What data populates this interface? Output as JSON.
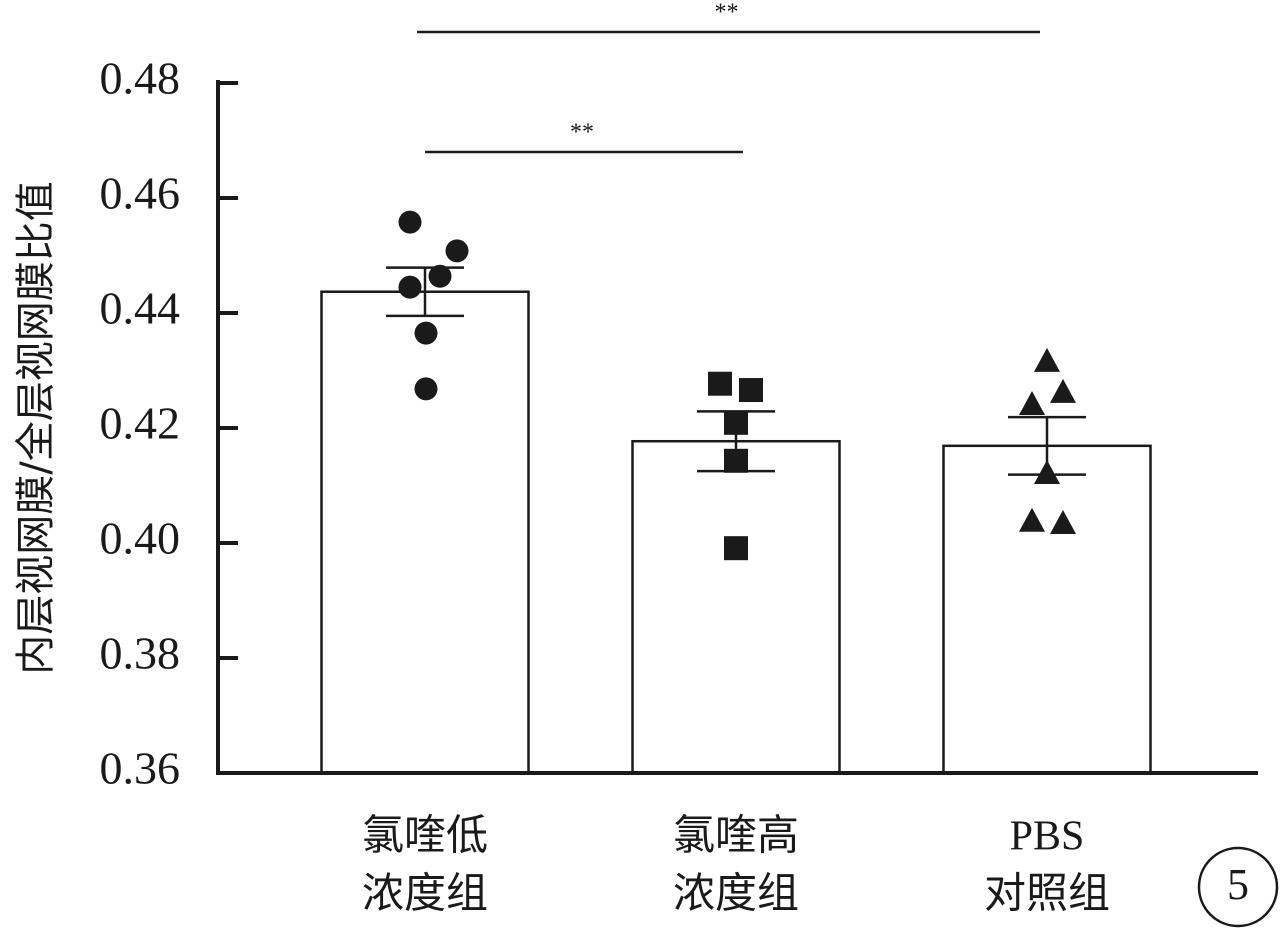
{
  "chart_data": {
    "type": "bar",
    "y_label": "内层视网膜/全层视网膜比值",
    "categories": [
      [
        "氯喹低",
        "浓度组"
      ],
      [
        "氯喹高",
        "浓度组"
      ],
      [
        "PBS",
        "对照组"
      ]
    ],
    "values": [
      0.4437,
      0.4177,
      0.4169
    ],
    "errors": [
      0.0042,
      0.0052,
      0.005
    ],
    "color": "#ffffff",
    "edge_color": "#1a1a1a",
    "points": [
      [
        0.4558,
        0.4508,
        0.4464,
        0.4445,
        0.4365,
        0.4268
      ],
      [
        0.4277,
        0.4266,
        0.4209,
        0.4143,
        0.3991
      ],
      [
        0.4315,
        0.4261,
        0.424,
        0.412,
        0.4037,
        0.4033
      ]
    ],
    "markers": [
      "circle",
      "square",
      "triangle"
    ],
    "ylim": [
      0.36,
      0.48
    ],
    "yticks": [
      0.36,
      0.38,
      {
        "value": 0.4,
        "label": "0.40"
      },
      0.42,
      0.44,
      0.46,
      0.48
    ],
    "annotations": [
      "**",
      "**"
    ],
    "panel_label": "5"
  }
}
